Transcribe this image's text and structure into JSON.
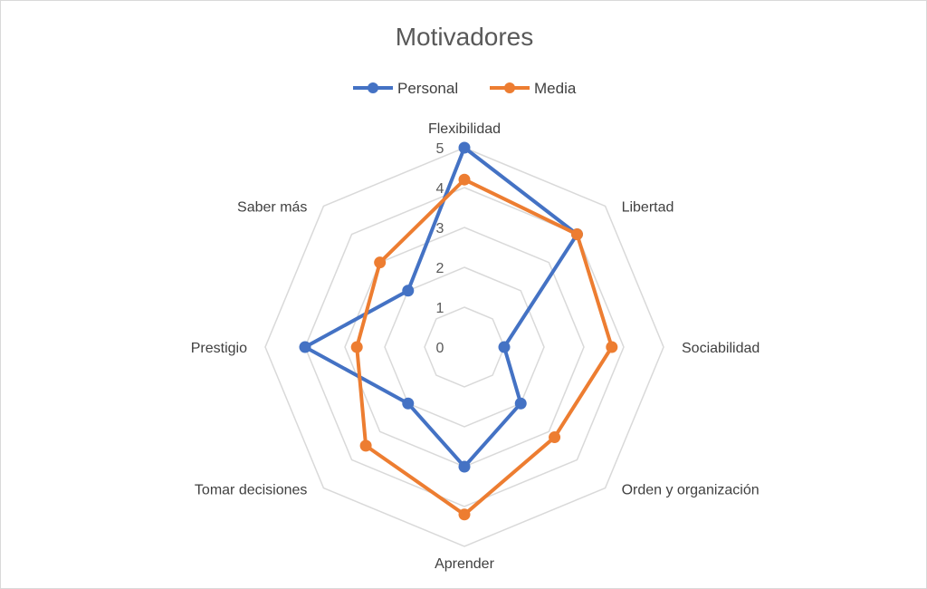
{
  "chart_data": {
    "type": "radar",
    "title": "Motivadores",
    "categories": [
      "Flexibilidad",
      "Libertad",
      "Sociabilidad",
      "Orden y organización",
      "Aprender",
      "Tomar decisiones",
      "Prestigio",
      "Saber más"
    ],
    "series": [
      {
        "name": "Personal",
        "values": [
          5,
          4,
          1,
          2,
          3,
          2,
          4,
          2
        ],
        "color": "#4472c4"
      },
      {
        "name": "Media",
        "values": [
          4.2,
          4,
          3.7,
          3.2,
          4.2,
          3.5,
          2.7,
          3
        ],
        "color": "#ed7d31"
      }
    ],
    "rlim": [
      0,
      5
    ],
    "ticks": [
      "0",
      "1",
      "2",
      "3",
      "4",
      "5"
    ],
    "legend_position": "top",
    "grid": true
  }
}
